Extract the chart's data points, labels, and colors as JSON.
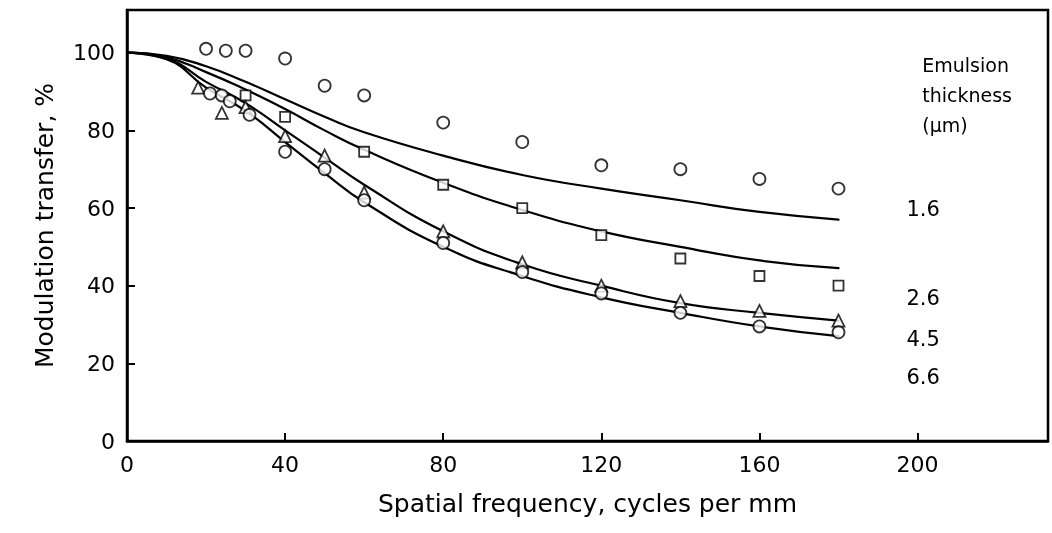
{
  "chart_data": {
    "type": "line",
    "xlabel": "Spatial frequency, cycles per mm",
    "ylabel": "Modulation transfer, %",
    "legend_title": "Emulsion thickness (μm)",
    "xlim": [
      0,
      233
    ],
    "xticks": [
      0,
      40,
      80,
      120,
      160,
      200
    ],
    "ylim": [
      0,
      111
    ],
    "yticks": [
      0,
      20,
      40,
      60,
      80,
      100
    ],
    "grid": false,
    "legend": false,
    "series": [
      {
        "type": "line",
        "name": "1.6",
        "color": "#000000",
        "marker": "none",
        "x": [
          0,
          10,
          20,
          30,
          40,
          50,
          60,
          80,
          100,
          120,
          140,
          160,
          180
        ],
        "values": [
          100,
          99.2,
          96.5,
          92.5,
          88,
          83.5,
          79.5,
          73.5,
          68.5,
          65,
          62,
          59,
          57
        ]
      },
      {
        "type": "line",
        "name": "2.6",
        "color": "#000000",
        "marker": "none",
        "x": [
          0,
          10,
          20,
          30,
          40,
          50,
          60,
          80,
          100,
          120,
          140,
          160,
          180
        ],
        "values": [
          100,
          98.8,
          95,
          90.5,
          85.5,
          80,
          75,
          66.5,
          59.5,
          54,
          50,
          46.5,
          44.5
        ]
      },
      {
        "type": "line",
        "name": "4.5",
        "color": "#000000",
        "marker": "none",
        "x": [
          0,
          10,
          20,
          30,
          40,
          50,
          60,
          80,
          100,
          120,
          140,
          160,
          180
        ],
        "values": [
          100,
          98.5,
          92.5,
          87,
          80,
          73,
          66,
          54,
          45.5,
          40,
          35.5,
          33,
          31
        ]
      },
      {
        "type": "line",
        "name": "6.6",
        "color": "#000000",
        "marker": "none",
        "x": [
          0,
          10,
          20,
          30,
          40,
          50,
          60,
          80,
          100,
          120,
          140,
          160,
          180
        ],
        "values": [
          100,
          98.3,
          91,
          85,
          77,
          69,
          61.5,
          50,
          42.5,
          37,
          33,
          29.5,
          27
        ]
      },
      {
        "type": "scatter",
        "color": "#000000",
        "marker": "circle",
        "x": [
          20,
          25,
          30,
          40,
          50,
          60,
          80,
          100,
          120,
          140,
          160,
          180
        ],
        "values": [
          101,
          100.5,
          100.5,
          98.5,
          91.5,
          89,
          82,
          77,
          71,
          70,
          67.5,
          65
        ]
      },
      {
        "type": "scatter",
        "color": "#000000",
        "marker": "square",
        "x": [
          30,
          40,
          60,
          80,
          100,
          120,
          140,
          160,
          180
        ],
        "values": [
          89,
          83.5,
          74.5,
          66,
          60,
          53,
          47,
          42.5,
          40
        ]
      },
      {
        "type": "scatter",
        "color": "#000000",
        "marker": "triangle",
        "x": [
          18,
          24,
          30,
          40,
          50,
          60,
          80,
          100,
          120,
          140,
          160,
          180
        ],
        "values": [
          91,
          84.5,
          86,
          78.5,
          73.5,
          64,
          54,
          46,
          40,
          36,
          33.5,
          31
        ]
      },
      {
        "type": "scatter",
        "color": "#000000",
        "marker": "circle",
        "x": [
          21,
          24,
          26,
          31,
          40,
          50,
          60,
          80,
          100,
          120,
          140,
          160,
          180
        ],
        "values": [
          89.5,
          89,
          87.5,
          84,
          74.5,
          70,
          62,
          51,
          43.5,
          38,
          33,
          29.5,
          28
        ]
      }
    ]
  }
}
